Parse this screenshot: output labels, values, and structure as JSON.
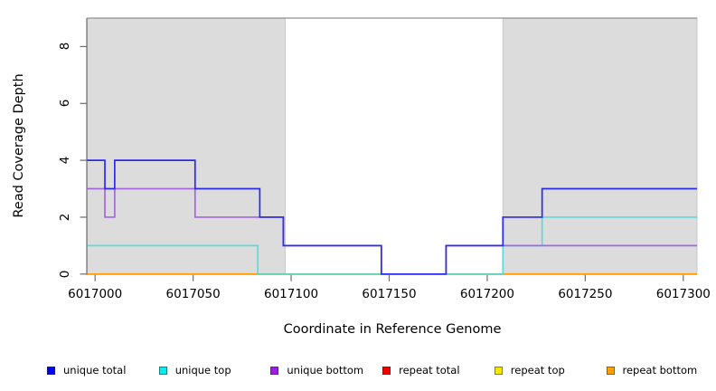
{
  "chart_data": {
    "type": "line",
    "line_style": "step-after",
    "title": "",
    "xlabel": "Coordinate in Reference Genome",
    "ylabel": "Read Coverage Depth",
    "xlim": [
      6016996,
      6017307
    ],
    "ylim": [
      0,
      9
    ],
    "x_ticks": [
      6017000,
      6017050,
      6017100,
      6017150,
      6017200,
      6017250,
      6017300
    ],
    "y_ticks": [
      0,
      2,
      4,
      6,
      8
    ],
    "grid": false,
    "legend_position": "bottom",
    "plot_bg": "#ffffff",
    "shaded_region_color": "#dcdcdc",
    "shaded_region_edge": "#c9c9c9",
    "top_border_color": "#8f8f8f",
    "axis_color": "#6e6e6e",
    "shaded_regions": [
      {
        "start": 6016996,
        "end": 6017097
      },
      {
        "start": 6017208,
        "end": 6017307
      }
    ],
    "draw_order": [
      "repeat total",
      "repeat top",
      "repeat bottom",
      "unique top",
      "unique bottom",
      "unique total"
    ],
    "series": [
      {
        "name": "unique total",
        "color": "#2a2af0",
        "legend_color": "#0000ff",
        "opacity": 1,
        "steps": [
          [
            6016996,
            4
          ],
          [
            6017005,
            3
          ],
          [
            6017010,
            4
          ],
          [
            6017051,
            3
          ],
          [
            6017084,
            2
          ],
          [
            6017096,
            1
          ],
          [
            6017146,
            0
          ],
          [
            6017179,
            1
          ],
          [
            6017208,
            2
          ],
          [
            6017228,
            3
          ]
        ]
      },
      {
        "name": "unique top",
        "color": "#3fd9d9",
        "legend_color": "#00eeee",
        "opacity": 0.8,
        "steps": [
          [
            6016996,
            1
          ],
          [
            6017083,
            0
          ],
          [
            6017208,
            1
          ],
          [
            6017228,
            2
          ]
        ]
      },
      {
        "name": "unique bottom",
        "color": "#a566e3",
        "legend_color": "#9a1fe0",
        "opacity": 1,
        "steps": [
          [
            6016996,
            3
          ],
          [
            6017005,
            2
          ],
          [
            6017010,
            3
          ],
          [
            6017051,
            2
          ],
          [
            6017096,
            1
          ],
          [
            6017146,
            0
          ],
          [
            6017179,
            1
          ]
        ]
      },
      {
        "name": "repeat total",
        "color": "#e02020",
        "legend_color": "#ee0000",
        "opacity": 1,
        "steps": [
          [
            6016996,
            0
          ]
        ]
      },
      {
        "name": "repeat top",
        "color": "#f5f53a",
        "legend_color": "#f5e800",
        "opacity": 1,
        "steps": [
          [
            6016996,
            0
          ]
        ]
      },
      {
        "name": "repeat bottom",
        "color": "#ff9c00",
        "legend_color": "#ffa200",
        "opacity": 1,
        "steps": [
          [
            6016996,
            0
          ]
        ]
      }
    ]
  }
}
